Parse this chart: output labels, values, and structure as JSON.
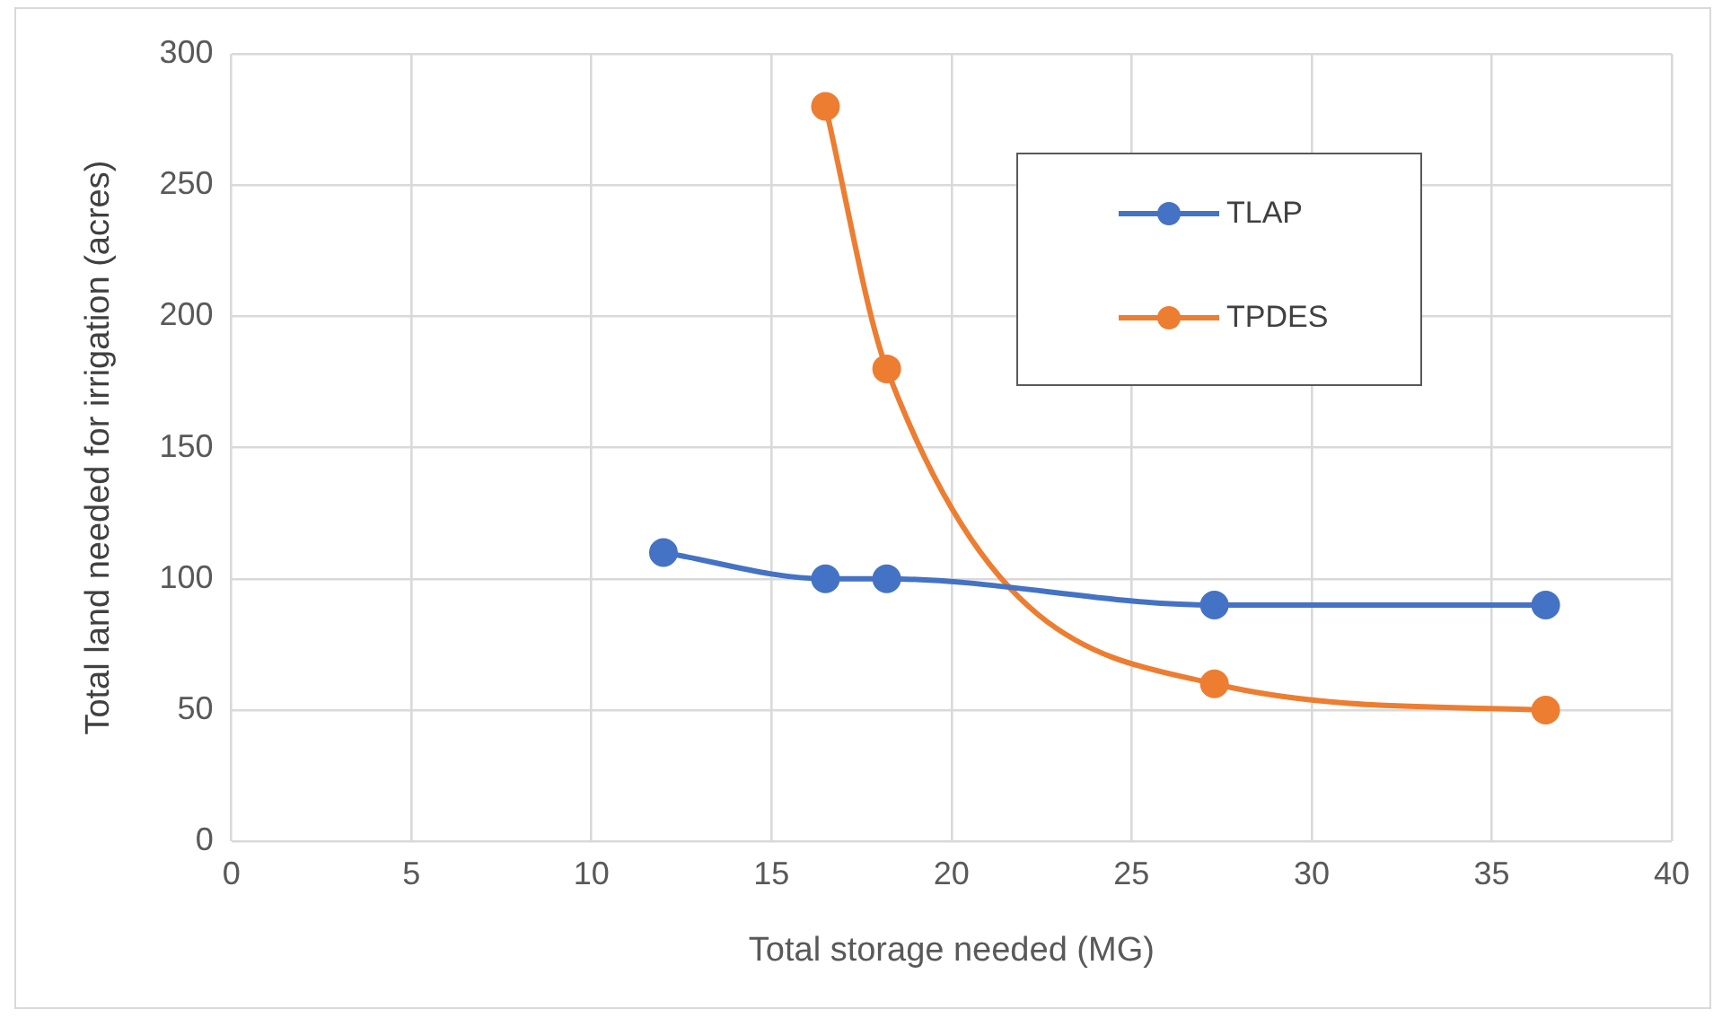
{
  "chart_data": {
    "type": "line",
    "xlabel": "Total storage needed (MG)",
    "ylabel": "Total land needed for irrigation (acres)",
    "xlim": [
      0,
      40
    ],
    "xticks": [
      0,
      5,
      10,
      15,
      20,
      25,
      30,
      35,
      40
    ],
    "ylim": [
      0,
      300
    ],
    "yticks": [
      0,
      50,
      100,
      150,
      200,
      250,
      300
    ],
    "grid": true,
    "legend": "top right",
    "marker": "circle",
    "series": [
      {
        "name": "TLAP",
        "color": "#4472c4",
        "x": [
          12,
          16.5,
          18.2,
          27.3,
          36.5
        ],
        "values": [
          110,
          100,
          100,
          90,
          90
        ]
      },
      {
        "name": "TPDES",
        "color": "#ed7d31",
        "x": [
          16.5,
          18.2,
          27.3,
          36.5
        ],
        "values": [
          280,
          180,
          60,
          50
        ]
      }
    ]
  }
}
